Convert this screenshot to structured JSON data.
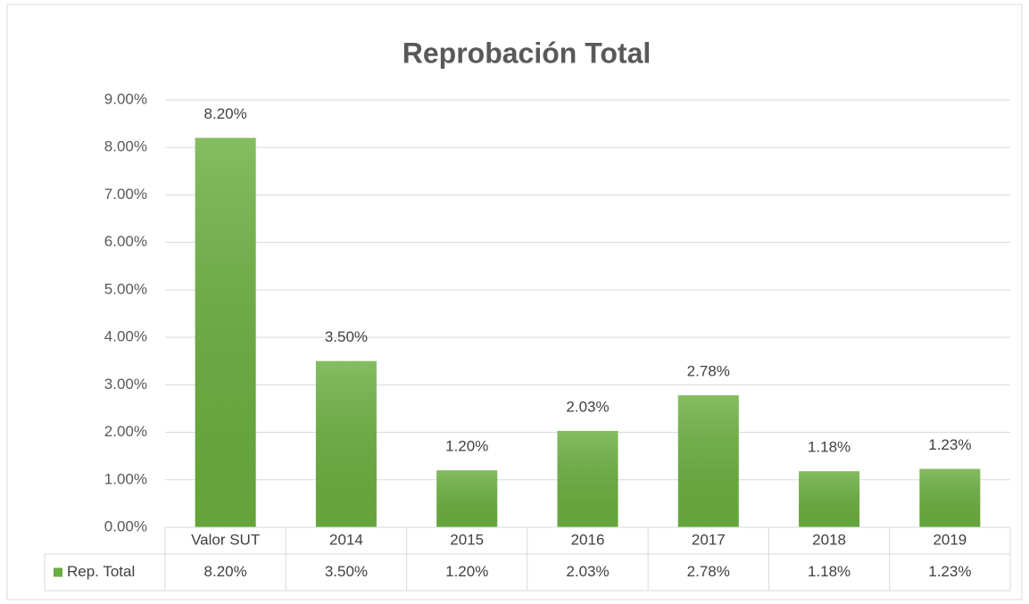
{
  "chart_data": {
    "type": "bar",
    "title": "Reprobación Total",
    "categories": [
      "Valor SUT",
      "2014",
      "2015",
      "2016",
      "2017",
      "2018",
      "2019"
    ],
    "series": [
      {
        "name": "Rep. Total",
        "color": "#6aae3e",
        "values": [
          8.2,
          3.5,
          1.2,
          2.03,
          2.78,
          1.18,
          1.23
        ],
        "value_labels": [
          "8.20%",
          "3.50%",
          "1.20%",
          "2.03%",
          "2.78%",
          "1.18%",
          "1.23%"
        ]
      }
    ],
    "ylim": [
      0,
      9
    ],
    "yticks": [
      {
        "value": 0,
        "label": "0.00%"
      },
      {
        "value": 1,
        "label": "1.00%"
      },
      {
        "value": 2,
        "label": "2.00%"
      },
      {
        "value": 3,
        "label": "3.00%"
      },
      {
        "value": 4,
        "label": "4.00%"
      },
      {
        "value": 5,
        "label": "5.00%"
      },
      {
        "value": 6,
        "label": "6.00%"
      },
      {
        "value": 7,
        "label": "7.00%"
      },
      {
        "value": 8,
        "label": "8.00%"
      },
      {
        "value": 9,
        "label": "9.00%"
      }
    ],
    "grid": true,
    "data_table": true
  }
}
